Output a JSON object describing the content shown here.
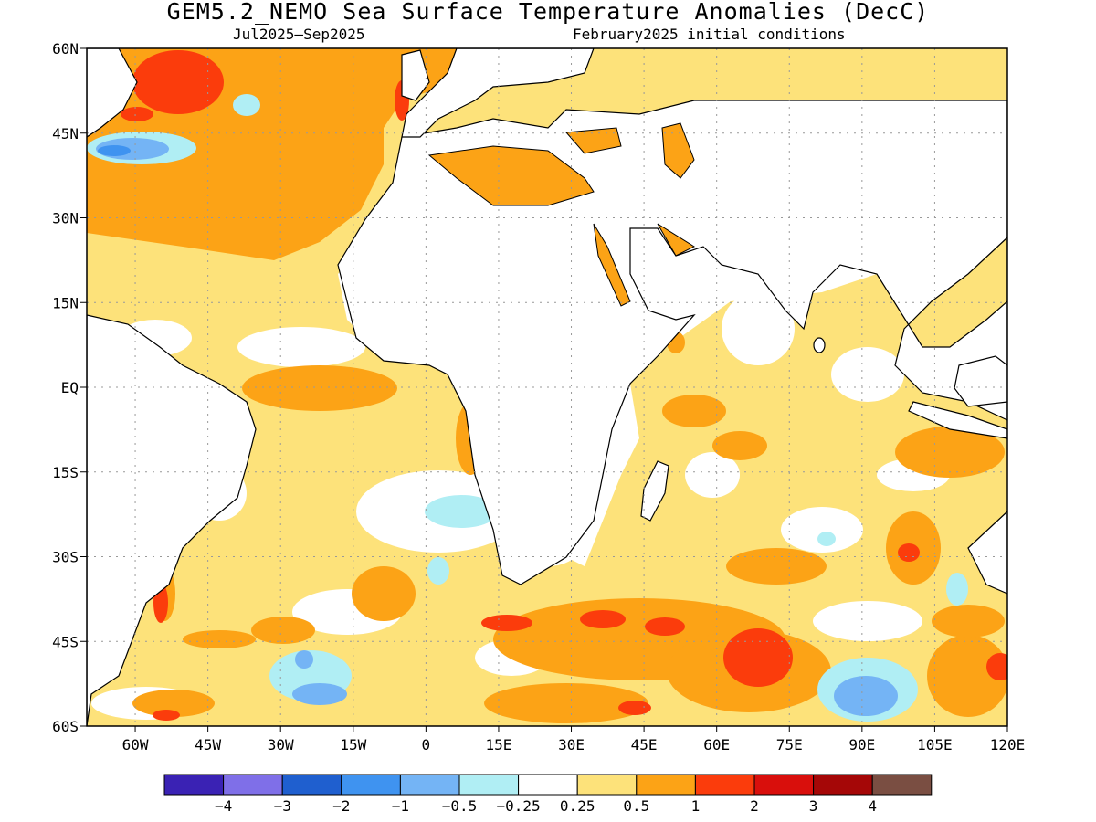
{
  "title": "GEM5.2_NEMO Sea Surface Temperature Anomalies (DecC)",
  "subtitle_left": "Jul2025–Sep2025",
  "subtitle_right": "February2025 initial conditions",
  "map": {
    "lon_range": [
      -70,
      120
    ],
    "lat_range": [
      -60,
      60
    ],
    "lat_ticks": [
      "60N",
      "45N",
      "30N",
      "15N",
      "EQ",
      "15S",
      "30S",
      "45S",
      "60S"
    ],
    "lon_ticks": [
      "60W",
      "45W",
      "30W",
      "15W",
      "0",
      "15E",
      "30E",
      "45E",
      "60E",
      "75E",
      "90E",
      "105E",
      "120E"
    ],
    "gridlines": "dotted"
  },
  "colorbar": {
    "labels": [
      "−4",
      "−3",
      "−2",
      "−1",
      "−0.5",
      "−0.25",
      "0.25",
      "0.5",
      "1",
      "2",
      "3",
      "4"
    ],
    "colors": [
      "#3a22b4",
      "#7f6fe8",
      "#1f5fcf",
      "#3f93f0",
      "#74b4f5",
      "#b0eef4",
      "#ffffff",
      "#fde27a",
      "#fca316",
      "#fb3c0c",
      "#d90f0c",
      "#a50707",
      "#7a4e42"
    ]
  }
}
